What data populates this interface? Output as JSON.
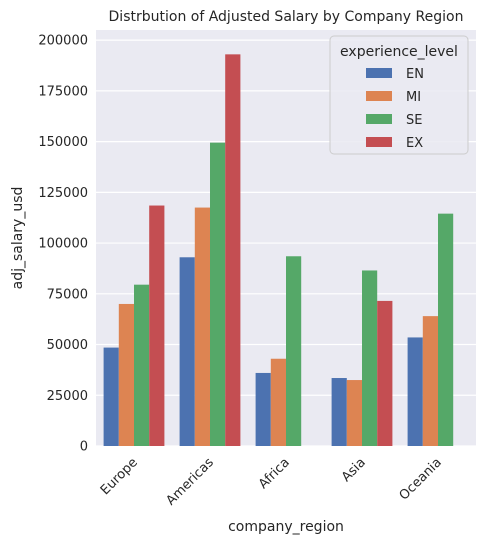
{
  "chart_data": {
    "type": "bar",
    "title": "Distrbution of Adjusted Salary by Company Region",
    "xlabel": "company_region",
    "ylabel": "adj_salary_usd",
    "categories": [
      "Europe",
      "Americas",
      "Africa",
      "Asia",
      "Oceania"
    ],
    "ylim": [
      0,
      205000
    ],
    "yticks": [
      0,
      25000,
      50000,
      75000,
      100000,
      125000,
      150000,
      175000,
      200000
    ],
    "ytick_labels": [
      "0",
      "25000",
      "50000",
      "75000",
      "100000",
      "125000",
      "150000",
      "175000",
      "200000"
    ],
    "grid": true,
    "legend": {
      "title": "experience_level",
      "placement": "top-right"
    },
    "series": [
      {
        "name": "EN",
        "color": "#4c72b0",
        "values": [
          48500,
          93000,
          36000,
          33500,
          53500
        ]
      },
      {
        "name": "MI",
        "color": "#dd8452",
        "values": [
          70000,
          117500,
          43000,
          32500,
          64000
        ]
      },
      {
        "name": "SE",
        "color": "#55a868",
        "values": [
          79500,
          149500,
          93500,
          86500,
          114500
        ]
      },
      {
        "name": "EX",
        "color": "#c44e52",
        "values": [
          118500,
          193000,
          null,
          71500,
          null
        ]
      }
    ]
  }
}
